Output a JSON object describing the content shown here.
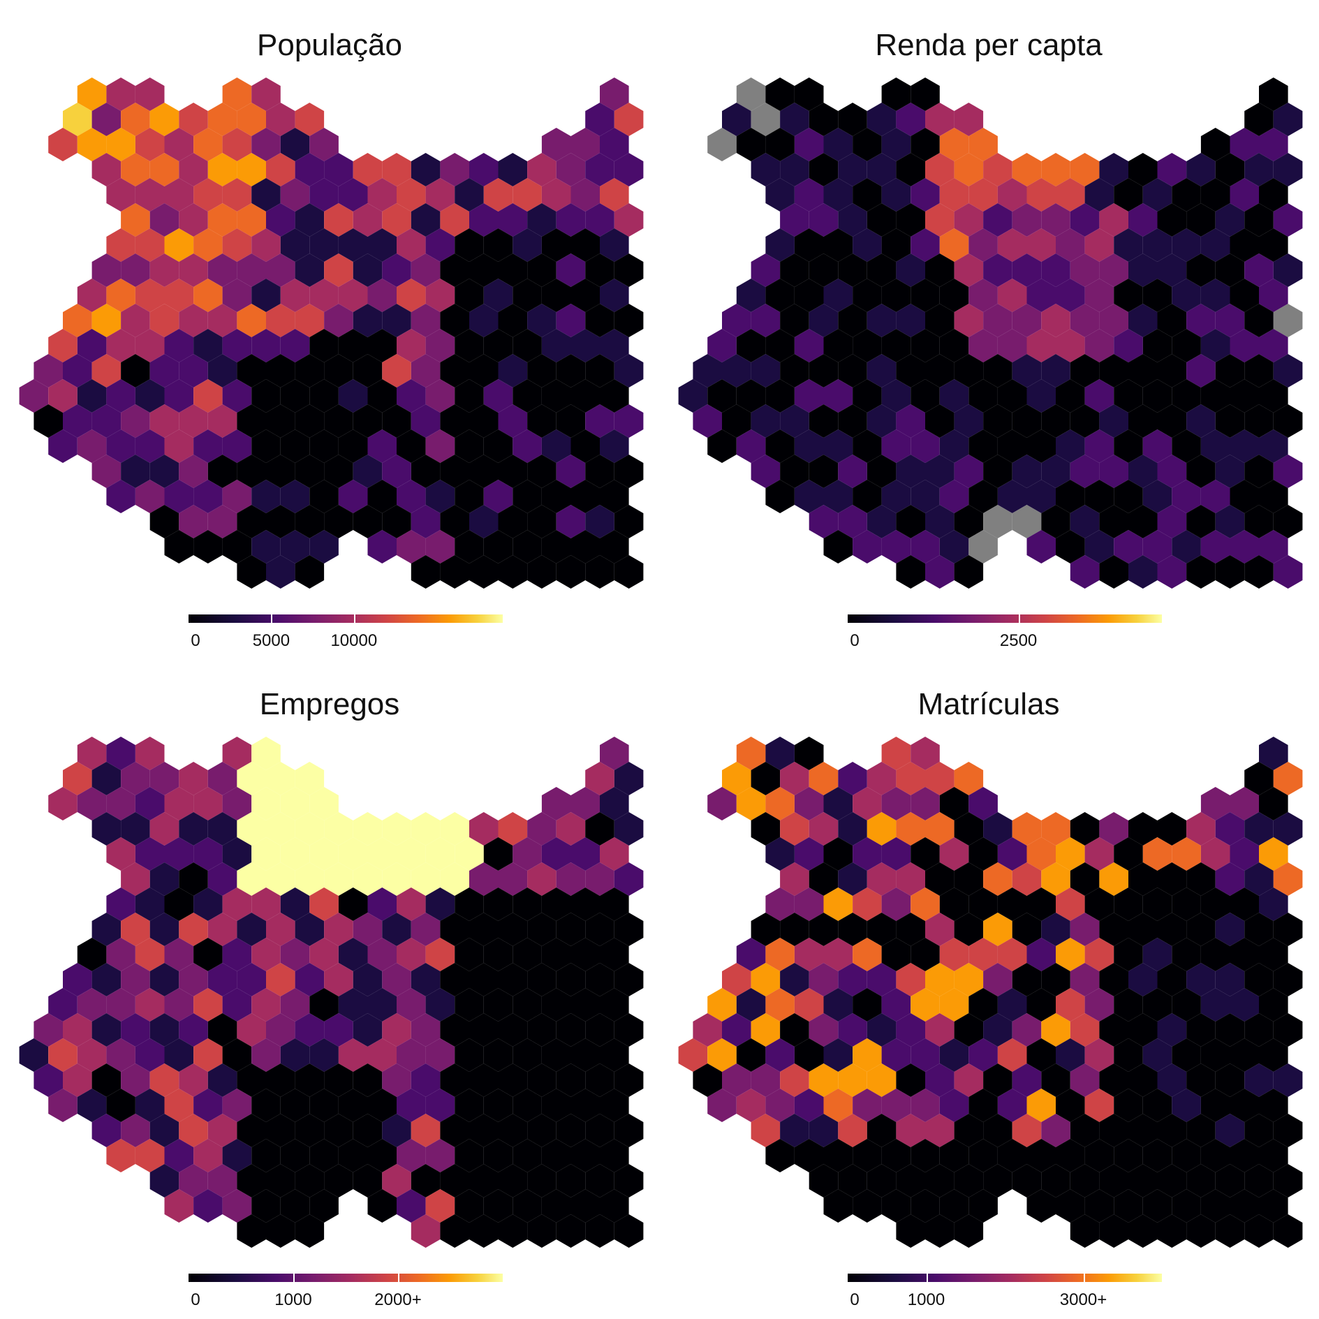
{
  "panels": [
    {
      "title": "População",
      "legend": {
        "labels": [
          "0",
          "5000",
          "10000"
        ],
        "label_values": [
          0,
          5000,
          10000
        ],
        "min": 0,
        "max": 19000
      },
      "pattern": "population",
      "colors": {
        "missing": "#808080"
      }
    },
    {
      "title": "Renda per capta",
      "legend": {
        "labels": [
          "0",
          "2500"
        ],
        "label_values": [
          0,
          2500
        ],
        "min": 0,
        "max": 4600
      },
      "pattern": "income",
      "colors": {
        "missing": "#808080"
      }
    },
    {
      "title": "Empregos",
      "legend": {
        "labels": [
          "0",
          "1000",
          "2000+"
        ],
        "label_values": [
          0,
          1000,
          2000
        ],
        "min": 0,
        "max": 3000
      },
      "pattern": "jobs",
      "colors": {
        "missing": "#808080"
      }
    },
    {
      "title": "Matrículas",
      "legend": {
        "labels": [
          "0",
          "1000",
          "3000+"
        ],
        "label_values": [
          0,
          1000,
          3000
        ],
        "min": 0,
        "max": 4000
      },
      "pattern": "enrollment",
      "colors": {
        "missing": "#808080"
      }
    }
  ],
  "colormap": [
    "#000004",
    "#1b0c41",
    "#4a0c6b",
    "#781c6d",
    "#a52c60",
    "#cf4446",
    "#ed6925",
    "#fb9b06",
    "#f7d13d",
    "#fcffa4"
  ]
}
